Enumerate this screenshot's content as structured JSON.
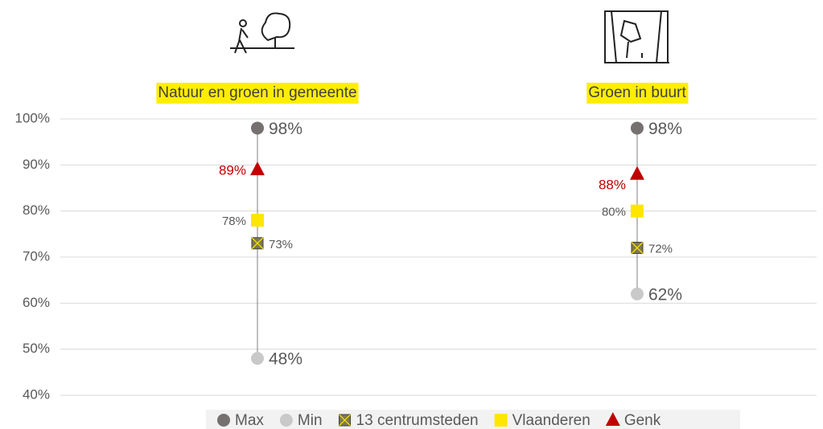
{
  "chart_data": {
    "type": "dot-range",
    "categories": [
      "Natuur en groen in gemeente",
      "Groen in buurt"
    ],
    "series": [
      {
        "name": "Max",
        "color": "#767171",
        "marker": "circle",
        "values": [
          98,
          98
        ],
        "value_labels": [
          "98%",
          "98%"
        ]
      },
      {
        "name": "Min",
        "color": "#c9c9c9",
        "marker": "circle",
        "values": [
          48,
          62
        ],
        "value_labels": [
          "48%",
          "62%"
        ]
      },
      {
        "name": "13 centrumsteden",
        "color": "#7f7a4a",
        "marker": "x-square",
        "values": [
          73,
          72
        ],
        "value_labels": [
          "73%",
          "72%"
        ]
      },
      {
        "name": "Vlaanderen",
        "color": "#ffe600",
        "marker": "square",
        "values": [
          78,
          80
        ],
        "value_labels": [
          "78%",
          "80%"
        ]
      },
      {
        "name": "Genk",
        "color": "#c00000",
        "marker": "triangle",
        "values": [
          89,
          88
        ],
        "value_labels": [
          "89%",
          "88%"
        ]
      }
    ],
    "ylim": [
      40,
      100
    ],
    "yticks": [
      {
        "value": 40,
        "label": "40%"
      },
      {
        "value": 50,
        "label": "50%"
      },
      {
        "value": 60,
        "label": "60%"
      },
      {
        "value": 70,
        "label": "70%"
      },
      {
        "value": 80,
        "label": "80%"
      },
      {
        "value": 90,
        "label": "90%"
      },
      {
        "value": 100,
        "label": "100%"
      }
    ],
    "grid": true,
    "legend": "bottom"
  }
}
